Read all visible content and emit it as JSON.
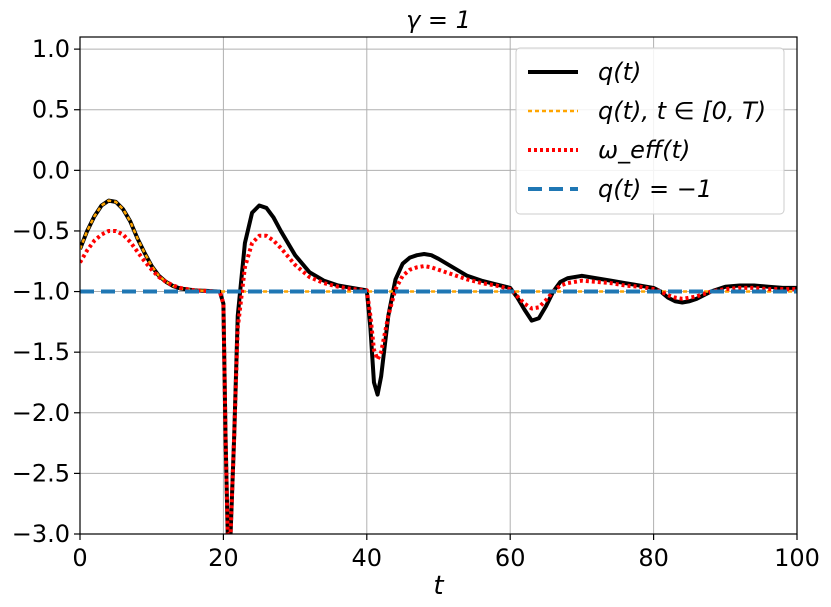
{
  "chart_data": {
    "type": "line",
    "title": "γ = 1",
    "xlabel": "t",
    "ylabel": "",
    "xlim": [
      0,
      100
    ],
    "ylim": [
      -3.0,
      1.1
    ],
    "xticks": [
      0,
      20,
      40,
      60,
      80,
      100
    ],
    "xtick_labels": [
      "0",
      "20",
      "40",
      "60",
      "80",
      "100"
    ],
    "yticks": [
      1.0,
      0.5,
      0.0,
      -0.5,
      -1.0,
      -1.5,
      -2.0,
      -2.5,
      -3.0
    ],
    "ytick_labels": [
      "1.0",
      "0.5",
      "0.0",
      "−0.5",
      "−1.0",
      "−1.5",
      "−2.0",
      "−2.5",
      "−3.0"
    ],
    "grid": true,
    "legend_position": "top-right",
    "series": [
      {
        "name": "q(t)",
        "color": "#000000",
        "style": "solid",
        "x": [
          0,
          1,
          2,
          3,
          4,
          5,
          6,
          7,
          8,
          9,
          10,
          11,
          12,
          13,
          14,
          16,
          18,
          19.5,
          20,
          20.3,
          20.6,
          21,
          21.5,
          22,
          23,
          24,
          25,
          26,
          27,
          28,
          30,
          32,
          34,
          36,
          38,
          40,
          40.5,
          41,
          41.5,
          42,
          43,
          44,
          45,
          46,
          47,
          48,
          49,
          50,
          52,
          54,
          56,
          58,
          60,
          61,
          62,
          63,
          64,
          65,
          66,
          67,
          68,
          70,
          72,
          74,
          76,
          78,
          80,
          81,
          82,
          83,
          84,
          85,
          86,
          87,
          88,
          89,
          90,
          92,
          94,
          96,
          98,
          100
        ],
        "y": [
          -0.65,
          -0.5,
          -0.38,
          -0.29,
          -0.25,
          -0.26,
          -0.32,
          -0.42,
          -0.56,
          -0.68,
          -0.79,
          -0.87,
          -0.92,
          -0.955,
          -0.975,
          -0.99,
          -0.995,
          -1.0,
          -1.1,
          -2.2,
          -3.0,
          -3.0,
          -2.2,
          -1.2,
          -0.6,
          -0.35,
          -0.29,
          -0.31,
          -0.39,
          -0.5,
          -0.7,
          -0.84,
          -0.91,
          -0.95,
          -0.97,
          -0.99,
          -1.3,
          -1.75,
          -1.85,
          -1.7,
          -1.2,
          -0.9,
          -0.77,
          -0.72,
          -0.7,
          -0.69,
          -0.7,
          -0.73,
          -0.8,
          -0.87,
          -0.91,
          -0.94,
          -0.97,
          -1.05,
          -1.15,
          -1.24,
          -1.22,
          -1.12,
          -1.0,
          -0.92,
          -0.89,
          -0.87,
          -0.89,
          -0.91,
          -0.93,
          -0.95,
          -0.97,
          -1.0,
          -1.05,
          -1.08,
          -1.09,
          -1.08,
          -1.06,
          -1.03,
          -1.0,
          -0.98,
          -0.96,
          -0.95,
          -0.95,
          -0.96,
          -0.97,
          -0.97
        ]
      },
      {
        "name": "q(t),  t ∈ [0, T)",
        "color": "#FFA500",
        "style": "dotted",
        "x": [
          0,
          1,
          2,
          3,
          4,
          5,
          6,
          7,
          8,
          9,
          10,
          11,
          12,
          13,
          14,
          16,
          18,
          20,
          30,
          40,
          50,
          60,
          70,
          80,
          90,
          100
        ],
        "y": [
          -0.65,
          -0.5,
          -0.38,
          -0.29,
          -0.25,
          -0.26,
          -0.32,
          -0.42,
          -0.56,
          -0.68,
          -0.79,
          -0.87,
          -0.92,
          -0.955,
          -0.975,
          -0.99,
          -0.995,
          -1.0,
          -1.0,
          -1.0,
          -1.0,
          -1.0,
          -1.0,
          -1.0,
          -1.0,
          -1.0
        ]
      },
      {
        "name": "ω_eff(t)",
        "color": "#FF0000",
        "style": "dotted",
        "x": [
          0,
          1,
          2,
          3,
          4,
          5,
          6,
          7,
          8,
          9,
          10,
          11,
          12,
          13,
          14,
          16,
          18,
          19.5,
          20,
          20.3,
          20.6,
          21,
          21.5,
          22,
          23,
          24,
          25,
          26,
          27,
          28,
          30,
          32,
          34,
          36,
          38,
          40,
          40.5,
          41,
          41.5,
          42,
          43,
          44,
          45,
          46,
          47,
          48,
          49,
          50,
          52,
          54,
          56,
          58,
          60,
          61,
          62,
          63,
          64,
          65,
          66,
          67,
          68,
          70,
          72,
          74,
          76,
          78,
          80,
          81,
          82,
          83,
          84,
          85,
          86,
          87,
          88,
          89,
          90,
          92,
          94,
          96,
          98,
          100
        ],
        "y": [
          -0.76,
          -0.66,
          -0.58,
          -0.53,
          -0.5,
          -0.5,
          -0.53,
          -0.59,
          -0.67,
          -0.75,
          -0.82,
          -0.88,
          -0.92,
          -0.95,
          -0.97,
          -0.99,
          -0.995,
          -1.0,
          -1.1,
          -2.2,
          -3.0,
          -3.0,
          -2.2,
          -1.3,
          -0.8,
          -0.6,
          -0.54,
          -0.54,
          -0.58,
          -0.64,
          -0.78,
          -0.88,
          -0.93,
          -0.96,
          -0.98,
          -0.99,
          -1.2,
          -1.48,
          -1.56,
          -1.5,
          -1.2,
          -0.98,
          -0.87,
          -0.82,
          -0.8,
          -0.79,
          -0.8,
          -0.82,
          -0.86,
          -0.9,
          -0.93,
          -0.95,
          -0.98,
          -1.04,
          -1.1,
          -1.14,
          -1.13,
          -1.07,
          -1.0,
          -0.95,
          -0.93,
          -0.91,
          -0.92,
          -0.93,
          -0.95,
          -0.96,
          -0.98,
          -1.0,
          -1.03,
          -1.05,
          -1.06,
          -1.05,
          -1.04,
          -1.02,
          -1.0,
          -0.99,
          -0.98,
          -0.97,
          -0.97,
          -0.98,
          -0.98,
          -0.98
        ]
      },
      {
        "name": "q(t) = −1",
        "color": "#1F77B4",
        "style": "dashed",
        "x": [
          0,
          100
        ],
        "y": [
          -1.0,
          -1.0
        ]
      }
    ]
  }
}
